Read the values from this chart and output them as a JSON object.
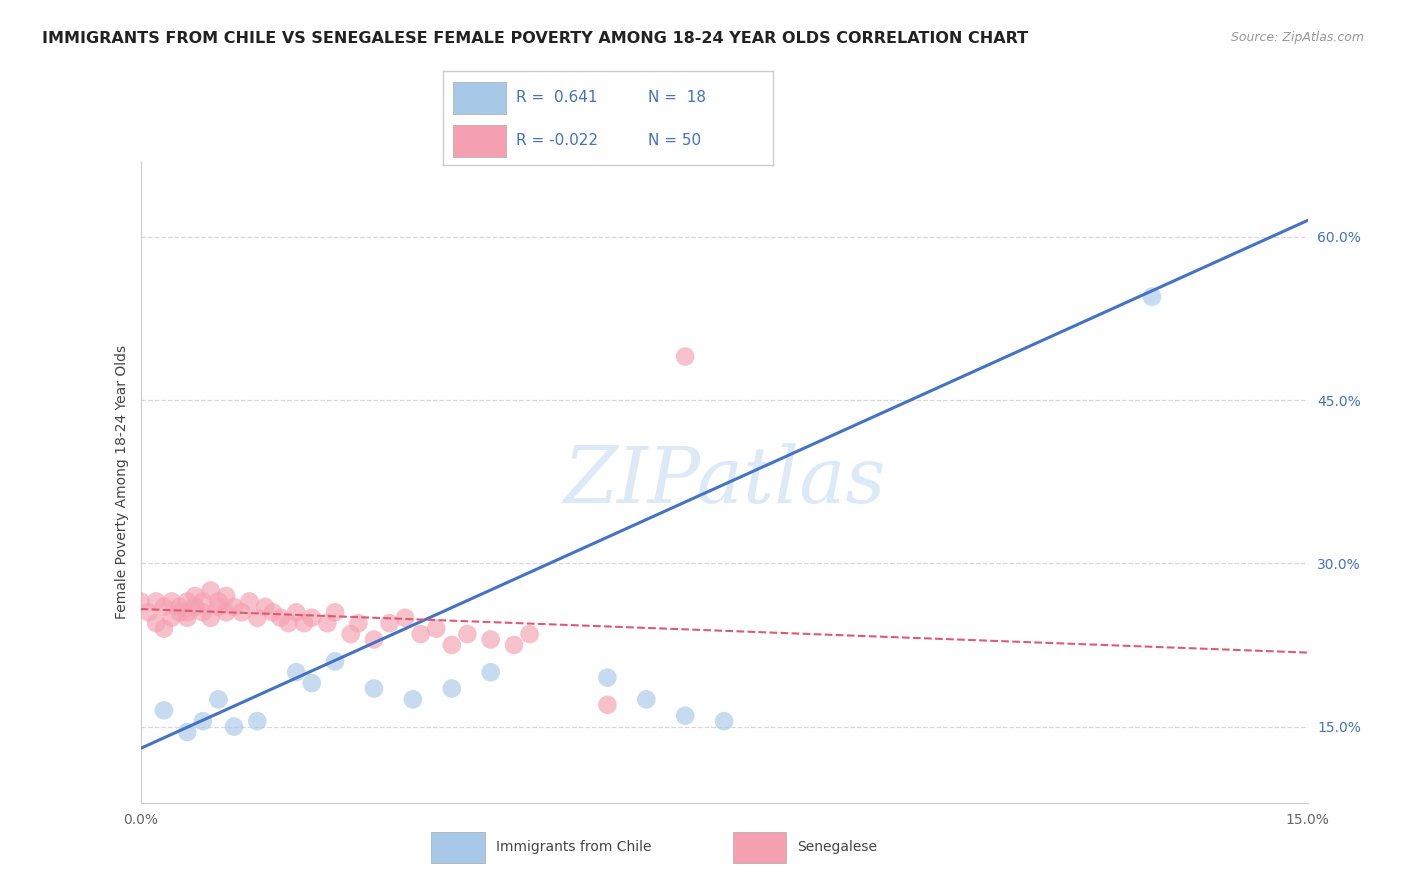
{
  "title": "IMMIGRANTS FROM CHILE VS SENEGALESE FEMALE POVERTY AMONG 18-24 YEAR OLDS CORRELATION CHART",
  "source": "Source: ZipAtlas.com",
  "ylabel": "Female Poverty Among 18-24 Year Olds",
  "xlim": [
    0.0,
    0.15
  ],
  "ylim": [
    0.08,
    0.67
  ],
  "y_ticks_right": [
    0.15,
    0.3,
    0.45,
    0.6
  ],
  "y_tick_labels_right": [
    "15.0%",
    "30.0%",
    "45.0%",
    "60.0%"
  ],
  "r_chile": 0.641,
  "n_chile": 18,
  "r_senegal": -0.022,
  "n_senegal": 50,
  "blue_color": "#a8c8e8",
  "pink_color": "#f4a0b0",
  "line_blue": "#4472c4",
  "line_pink": "#e05878",
  "legend_r_color": "#4472c4",
  "grid_color": "#d8d8d8",
  "bg_color": "#ffffff",
  "chile_x": [
    0.003,
    0.006,
    0.008,
    0.01,
    0.012,
    0.015,
    0.02,
    0.022,
    0.025,
    0.03,
    0.035,
    0.04,
    0.045,
    0.06,
    0.065,
    0.07,
    0.075,
    0.13
  ],
  "chile_y": [
    0.165,
    0.145,
    0.155,
    0.175,
    0.15,
    0.155,
    0.2,
    0.19,
    0.21,
    0.185,
    0.175,
    0.185,
    0.2,
    0.195,
    0.175,
    0.16,
    0.155,
    0.545
  ],
  "senegal_x": [
    0.0,
    0.001,
    0.002,
    0.002,
    0.003,
    0.003,
    0.004,
    0.004,
    0.005,
    0.005,
    0.006,
    0.006,
    0.006,
    0.007,
    0.007,
    0.008,
    0.008,
    0.009,
    0.009,
    0.01,
    0.01,
    0.011,
    0.011,
    0.012,
    0.013,
    0.014,
    0.015,
    0.016,
    0.017,
    0.018,
    0.019,
    0.02,
    0.021,
    0.022,
    0.024,
    0.025,
    0.027,
    0.028,
    0.03,
    0.032,
    0.034,
    0.036,
    0.038,
    0.04,
    0.042,
    0.045,
    0.048,
    0.05,
    0.06,
    0.07
  ],
  "senegal_y": [
    0.265,
    0.255,
    0.265,
    0.245,
    0.24,
    0.26,
    0.25,
    0.265,
    0.255,
    0.26,
    0.265,
    0.25,
    0.255,
    0.27,
    0.26,
    0.255,
    0.265,
    0.25,
    0.275,
    0.265,
    0.26,
    0.255,
    0.27,
    0.26,
    0.255,
    0.265,
    0.25,
    0.26,
    0.255,
    0.25,
    0.245,
    0.255,
    0.245,
    0.25,
    0.245,
    0.255,
    0.235,
    0.245,
    0.23,
    0.245,
    0.25,
    0.235,
    0.24,
    0.225,
    0.235,
    0.23,
    0.225,
    0.235,
    0.17,
    0.49
  ],
  "blue_line_x0": 0.0,
  "blue_line_y0": 0.13,
  "blue_line_x1": 0.15,
  "blue_line_y1": 0.615,
  "pink_line_x0": 0.0,
  "pink_line_y0": 0.258,
  "pink_line_x1": 0.15,
  "pink_line_y1": 0.218
}
